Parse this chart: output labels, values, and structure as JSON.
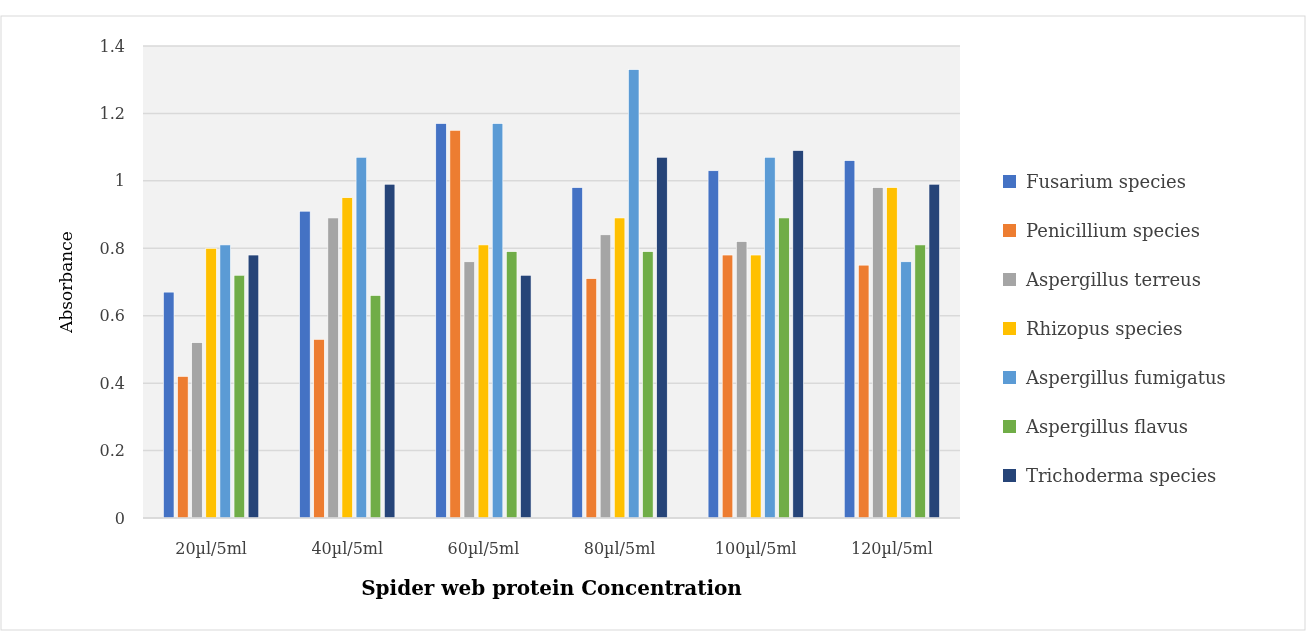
{
  "chart_data": {
    "type": "bar",
    "xlabel": "Spider web protein  Concentration",
    "ylabel": "Absorbance",
    "categories": [
      "20µl/5ml",
      "40µl/5ml",
      "60µl/5ml",
      "80µl/5ml",
      "100µl/5ml",
      "120µl/5ml"
    ],
    "series": [
      {
        "name": "Fusarium species",
        "color": "#4472c4",
        "values": [
          0.67,
          0.91,
          1.17,
          0.98,
          1.03,
          1.06
        ]
      },
      {
        "name": "Penicillium species",
        "color": "#ed7d31",
        "values": [
          0.42,
          0.53,
          1.15,
          0.71,
          0.78,
          0.75
        ]
      },
      {
        "name": "Aspergillus terreus",
        "color": "#a5a5a5",
        "values": [
          0.52,
          0.89,
          0.76,
          0.84,
          0.82,
          0.98
        ]
      },
      {
        "name": "Rhizopus species",
        "color": "#ffc000",
        "values": [
          0.8,
          0.95,
          0.81,
          0.89,
          0.78,
          0.98
        ]
      },
      {
        "name": "Aspergillus fumigatus",
        "color": "#5b9bd5",
        "values": [
          0.81,
          1.07,
          1.17,
          1.33,
          1.07,
          0.76
        ]
      },
      {
        "name": "Aspergillus flavus",
        "color": "#70ad47",
        "values": [
          0.72,
          0.66,
          0.79,
          0.79,
          0.89,
          0.81
        ]
      },
      {
        "name": "Trichoderma species",
        "color": "#264478",
        "values": [
          0.78,
          0.99,
          0.72,
          1.07,
          1.09,
          0.99
        ]
      }
    ],
    "ylim": [
      0,
      1.4
    ],
    "yticks": [
      0,
      0.2,
      0.4,
      0.6,
      0.8,
      1,
      1.2,
      1.4
    ],
    "grid": "y",
    "legend": "right"
  }
}
